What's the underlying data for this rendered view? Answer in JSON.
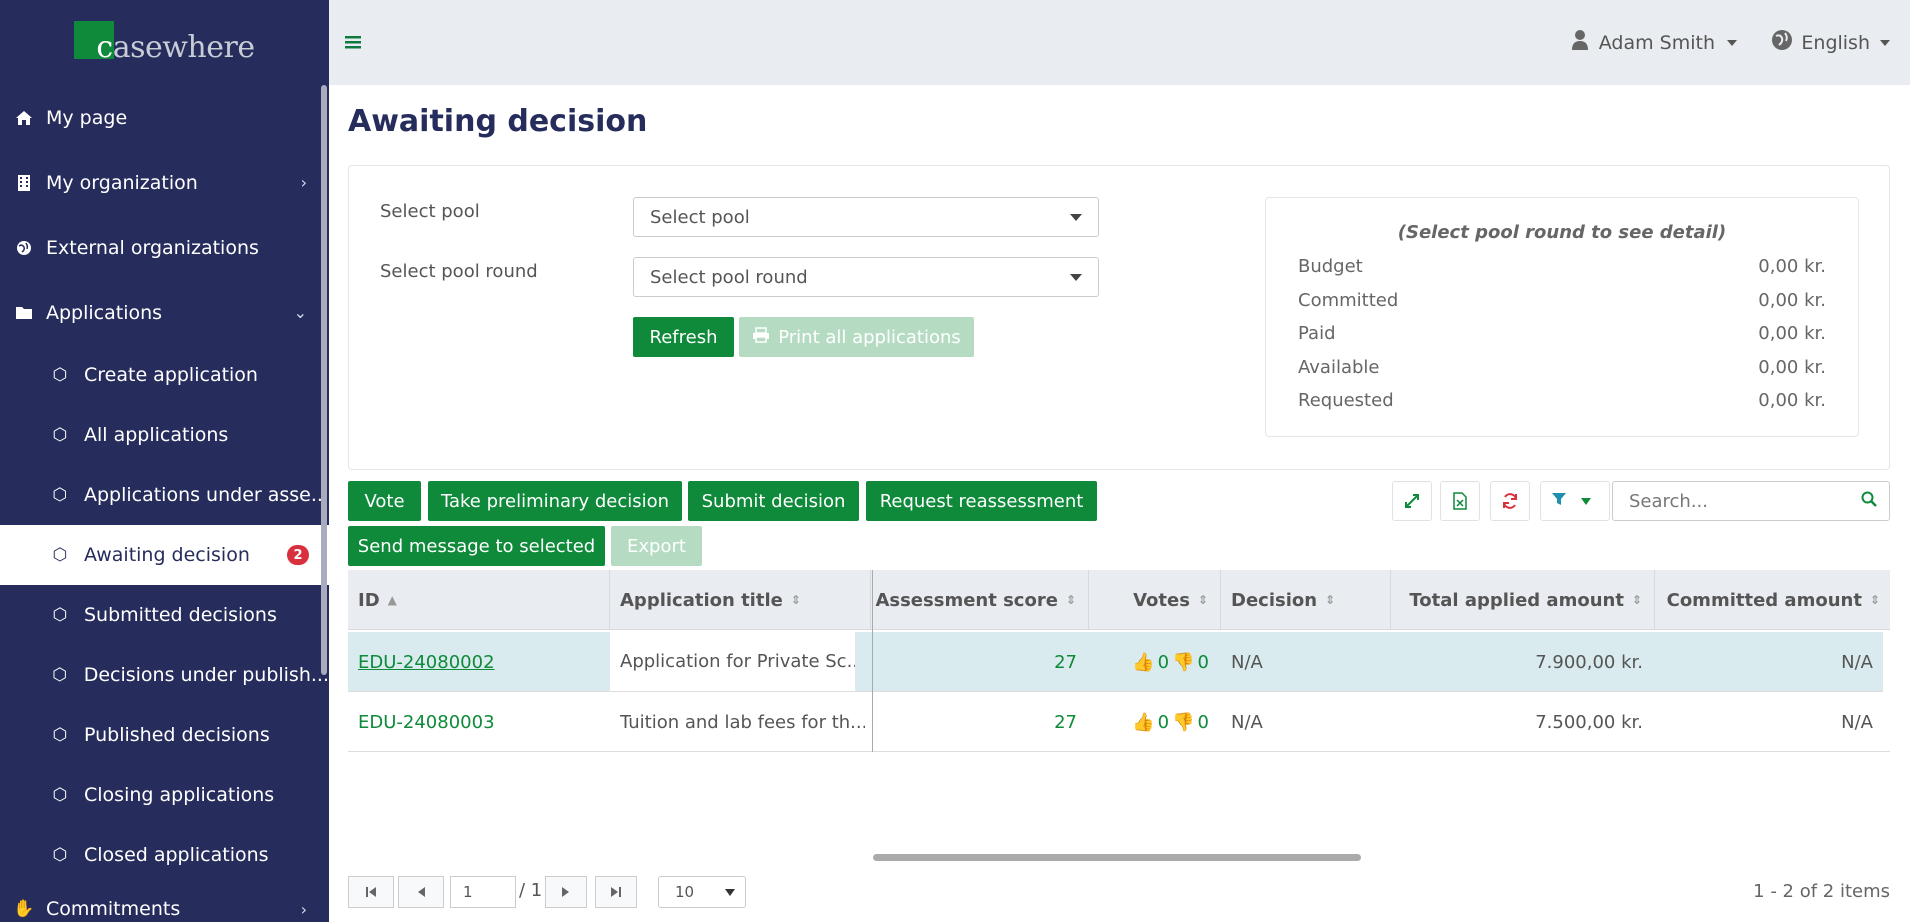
{
  "app": {
    "logo_c": "c",
    "logo_text": "casewhere"
  },
  "sidebar": {
    "items": [
      {
        "label": "My page",
        "icon": "home-icon"
      },
      {
        "label": "My organization",
        "icon": "building-icon"
      },
      {
        "label": "External organizations",
        "icon": "globe-icon"
      },
      {
        "label": "Applications",
        "icon": "folder-icon"
      }
    ],
    "sub_items": [
      {
        "label": "Create application"
      },
      {
        "label": "All applications"
      },
      {
        "label": "Applications under asse..."
      },
      {
        "label": "Awaiting decision",
        "badge": "2"
      },
      {
        "label": "Submitted decisions"
      },
      {
        "label": "Decisions under publish..."
      },
      {
        "label": "Published decisions"
      },
      {
        "label": "Closing applications"
      },
      {
        "label": "Closed applications"
      }
    ],
    "commitments": {
      "label": "Commitments",
      "icon": "handshake-icon"
    }
  },
  "topbar": {
    "user": "Adam Smith",
    "language": "English"
  },
  "page": {
    "title": "Awaiting decision"
  },
  "filters": {
    "pool_label": "Select pool",
    "pool_value": "Select pool",
    "round_label": "Select pool round",
    "round_value": "Select pool round",
    "refresh": "Refresh",
    "print_all": "Print all applications"
  },
  "summary": {
    "title": "(Select pool round to see detail)",
    "rows": [
      {
        "label": "Budget",
        "value": "0,00 kr."
      },
      {
        "label": "Committed",
        "value": "0,00 kr."
      },
      {
        "label": "Paid",
        "value": "0,00 kr."
      },
      {
        "label": "Available",
        "value": "0,00 kr."
      },
      {
        "label": "Requested",
        "value": "0,00 kr."
      }
    ]
  },
  "toolbar": {
    "vote": "Vote",
    "preliminary": "Take preliminary decision",
    "submit": "Submit decision",
    "reassess": "Request reassessment",
    "message": "Send message to selected",
    "export": "Export",
    "search_placeholder": "Search..."
  },
  "grid": {
    "columns": [
      "ID",
      "Application title",
      "Assessment score",
      "Votes",
      "Decision",
      "Total applied amount",
      "Committed amount"
    ],
    "rows": [
      {
        "id": "EDU-24080002",
        "title": "Application for Private Sc...",
        "score": "27",
        "up": "0",
        "down": "0",
        "decision": "N/A",
        "total": "7.900,00 kr.",
        "committed": "N/A",
        "selected": true
      },
      {
        "id": "EDU-24080003",
        "title": "Tuition and lab fees for th...",
        "score": "27",
        "up": "0",
        "down": "0",
        "decision": "N/A",
        "total": "7.500,00 kr.",
        "committed": "N/A",
        "selected": false
      }
    ]
  },
  "pager": {
    "page": "1",
    "total_pages": "/ 1",
    "page_size": "10",
    "info": "1 - 2 of 2 items"
  }
}
